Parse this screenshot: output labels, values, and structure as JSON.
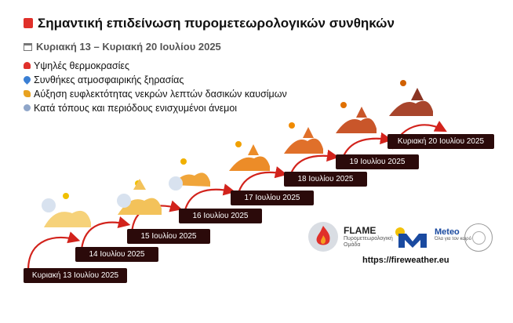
{
  "header": {
    "title": "Σημαντική επιδείνωση πυρομετεωρολογικών συνθηκών",
    "dates": "Κυριακή 13 – Κυριακή 20 Ιουλίου 2025"
  },
  "conditions": [
    {
      "icon": "thermometer-icon",
      "label": "Υψηλές θερμοκρασίες"
    },
    {
      "icon": "water-drop-icon",
      "label": "Συνθήκες ατμοσφαιρικής ξηρασίας"
    },
    {
      "icon": "leaf-icon",
      "label": "Αύξηση ευφλεκτότητας νεκρών λεπτών δασικών καυσίμων"
    },
    {
      "icon": "wind-icon",
      "label": "Κατά τόπους και περιόδους ενισχυμένοι άνεμοι"
    }
  ],
  "steps": [
    "Κυριακή 13 Ιουλίου 2025",
    "14 Ιουλίου 2025",
    "15 Ιουλίου 2025",
    "16 Ιουλίου 2025",
    "17 Ιουλίου 2025",
    "18 Ιουλίου 2025",
    "19 Ιουλίου 2025",
    "Κυριακή 20 Ιουλίου 2025"
  ],
  "logos": {
    "flame_name": "FLAME",
    "flame_sub": "Πυρομετεωρολογική Ομάδα",
    "meteo_name": "Meteo",
    "meteo_sub": "Όλα για τον καιρό",
    "url": "https://fireweather.eu"
  },
  "colors": {
    "step_bg": "#2b0a0a",
    "arrow": "#d2231c",
    "levels": [
      "#f6d27a",
      "#f3c25a",
      "#f0a53a",
      "#ec8c28",
      "#e0702a",
      "#c9562a",
      "#a8452c",
      "#8a3524"
    ]
  }
}
